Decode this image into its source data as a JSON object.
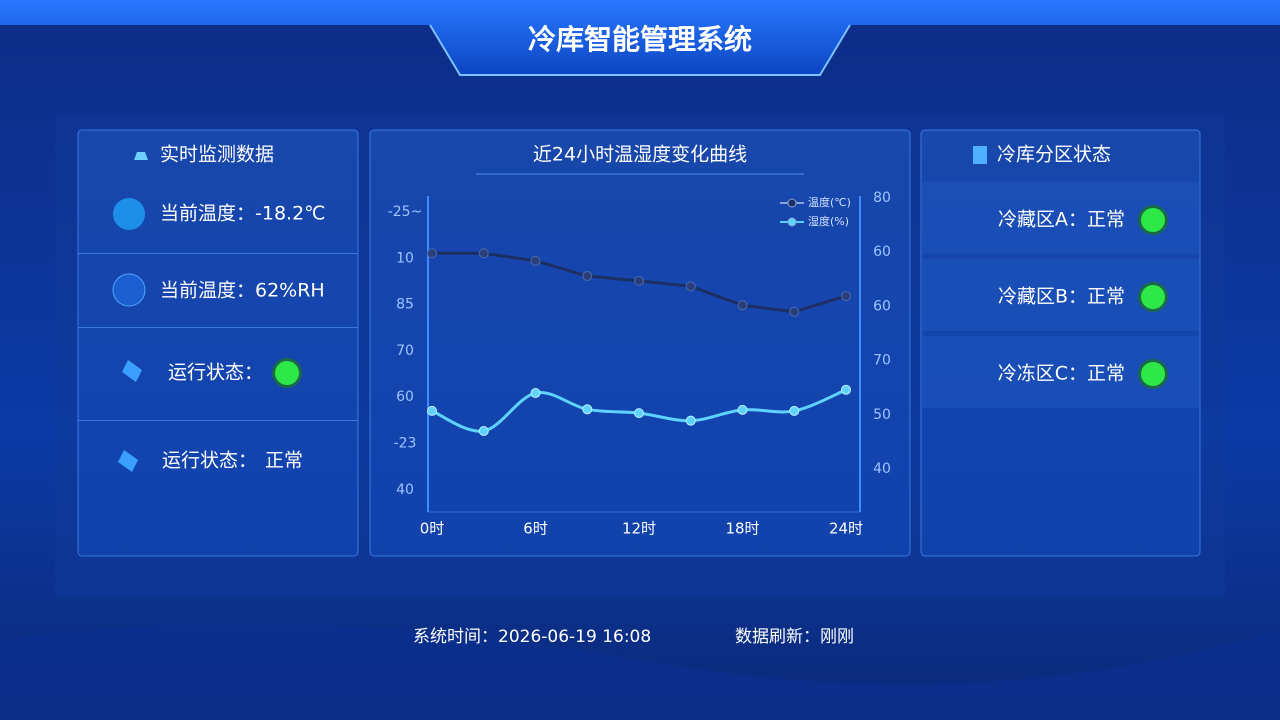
{
  "header": {
    "title": "冷库智能管理系统"
  },
  "left_panel": {
    "title": "实时监测数据",
    "items": [
      {
        "label": "当前温度：-18.2℃"
      },
      {
        "label": "当前温度：62%RH"
      },
      {
        "label": "运行状态："
      },
      {
        "label": "运行状态：",
        "value": "正常"
      }
    ]
  },
  "chart_data": {
    "type": "line",
    "title": "近24小时温湿度变化曲线",
    "categories": [
      "0时",
      null,
      "6时",
      null,
      "12时",
      null,
      "18时",
      null,
      "24时"
    ],
    "series": [
      {
        "name": "温度(℃)",
        "color": "#1c2f63",
        "values": [
          79.8,
          79.8,
          78.4,
          75.6,
          74.7,
          73.7,
          70.2,
          69,
          71.9
        ]
      },
      {
        "name": "湿度(%)",
        "color": "#5fd3ff",
        "values": [
          50.7,
          47,
          54,
          51,
          50.3,
          48.9,
          50.9,
          50.7,
          54.6
        ]
      }
    ],
    "ylim": [
      35,
      90
    ],
    "y_labels_left": [
      "-25~",
      "10",
      "85",
      "70",
      "60",
      "-23",
      "40"
    ],
    "y_labels_right": [
      "80",
      "60",
      "60",
      "70",
      "50",
      "40"
    ]
  },
  "right_panel": {
    "title": "冷库分区状态",
    "zones": [
      {
        "label": "冷藏区A：正常"
      },
      {
        "label": "冷藏区B：正常"
      },
      {
        "label": "冷冻区C：正常"
      }
    ]
  },
  "footer": {
    "system_time": "系统时间：2026-06-19 16:08",
    "refresh": "数据刷新：刚刚"
  }
}
